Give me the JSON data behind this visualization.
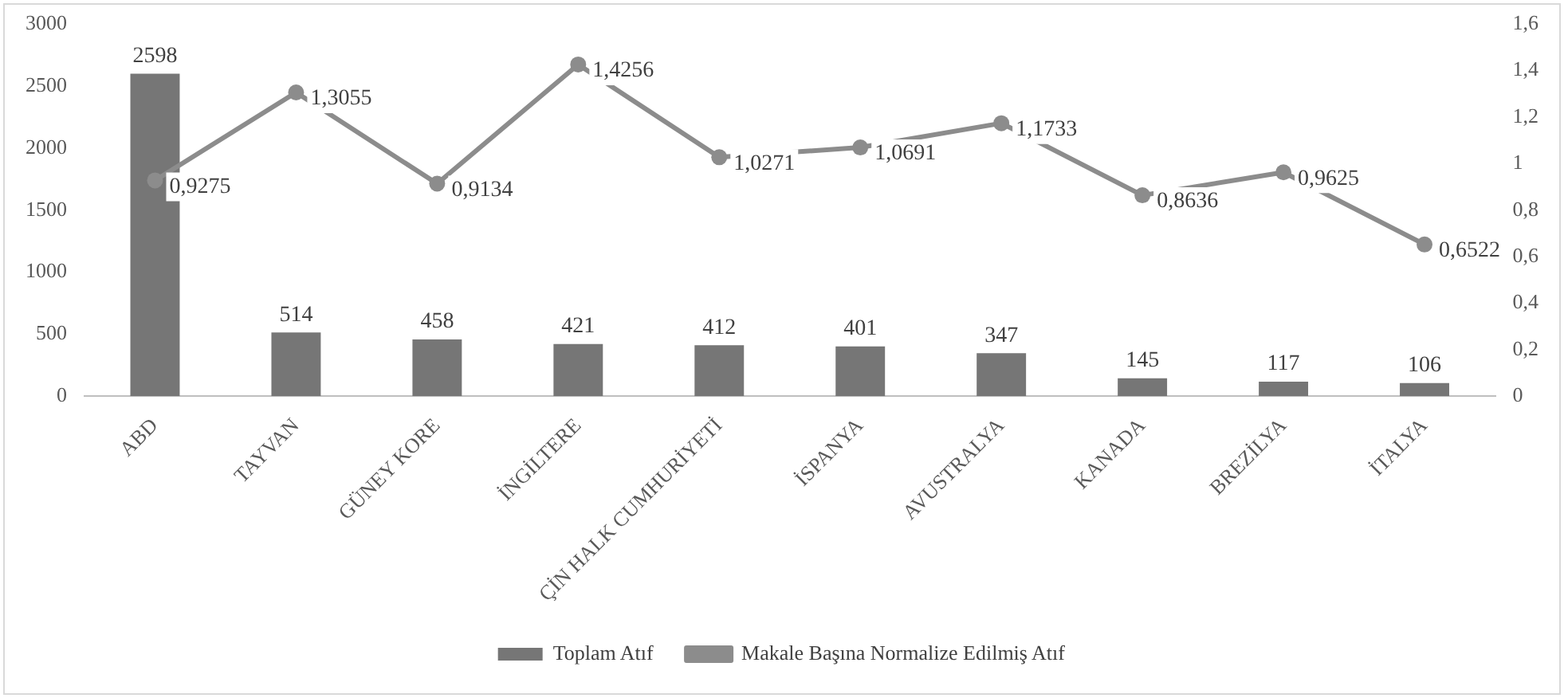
{
  "chart_data": {
    "type": "bar",
    "categories": [
      "ABD",
      "TAYVAN",
      "GÜNEY KORE",
      "İNGİLTERE",
      "ÇİN HALK CUMHURİYETİ",
      "İSPANYA",
      "AVUSTRALYA",
      "KANADA",
      "BREZİLYA",
      "İTALYA"
    ],
    "series": [
      {
        "name": "Toplam Atıf",
        "color": "#767676",
        "values": [
          2598,
          514,
          458,
          421,
          412,
          401,
          347,
          145,
          117,
          106
        ],
        "value_labels": [
          "2598",
          "514",
          "458",
          "421",
          "412",
          "401",
          "347",
          "145",
          "117",
          "106"
        ]
      },
      {
        "name": "Makale Başına Normalize Edilmiş Atıf",
        "type": "line",
        "axis": "y2",
        "color": "#8c8c8c",
        "marker": "circle",
        "values": [
          0.9275,
          1.3055,
          0.9134,
          1.4256,
          1.0271,
          1.0691,
          1.1733,
          0.8636,
          0.9625,
          0.6522
        ],
        "value_labels": [
          "0,9275",
          "1,3055",
          "0,9134",
          "1,4256",
          "1,0271",
          "1,0691",
          "1,1733",
          "0,8636",
          "0,9625",
          "0,6522"
        ]
      }
    ],
    "ylim": [
      0,
      3000
    ],
    "yticks": [
      0,
      500,
      1000,
      1500,
      2000,
      2500,
      3000
    ],
    "y2lim": [
      0,
      1.6
    ],
    "y2ticks": [
      {
        "value": 0,
        "label": "0"
      },
      {
        "value": 0.2,
        "label": "0,2"
      },
      {
        "value": 0.4,
        "label": "0,4"
      },
      {
        "value": 0.6,
        "label": "0,6"
      },
      {
        "value": 0.8,
        "label": "0,8"
      },
      {
        "value": 1,
        "label": "1"
      },
      {
        "value": 1.2,
        "label": "1,2"
      },
      {
        "value": 1.4,
        "label": "1,4"
      },
      {
        "value": 1.6,
        "label": "1,6"
      }
    ],
    "grid": false,
    "legend": "bottom"
  }
}
